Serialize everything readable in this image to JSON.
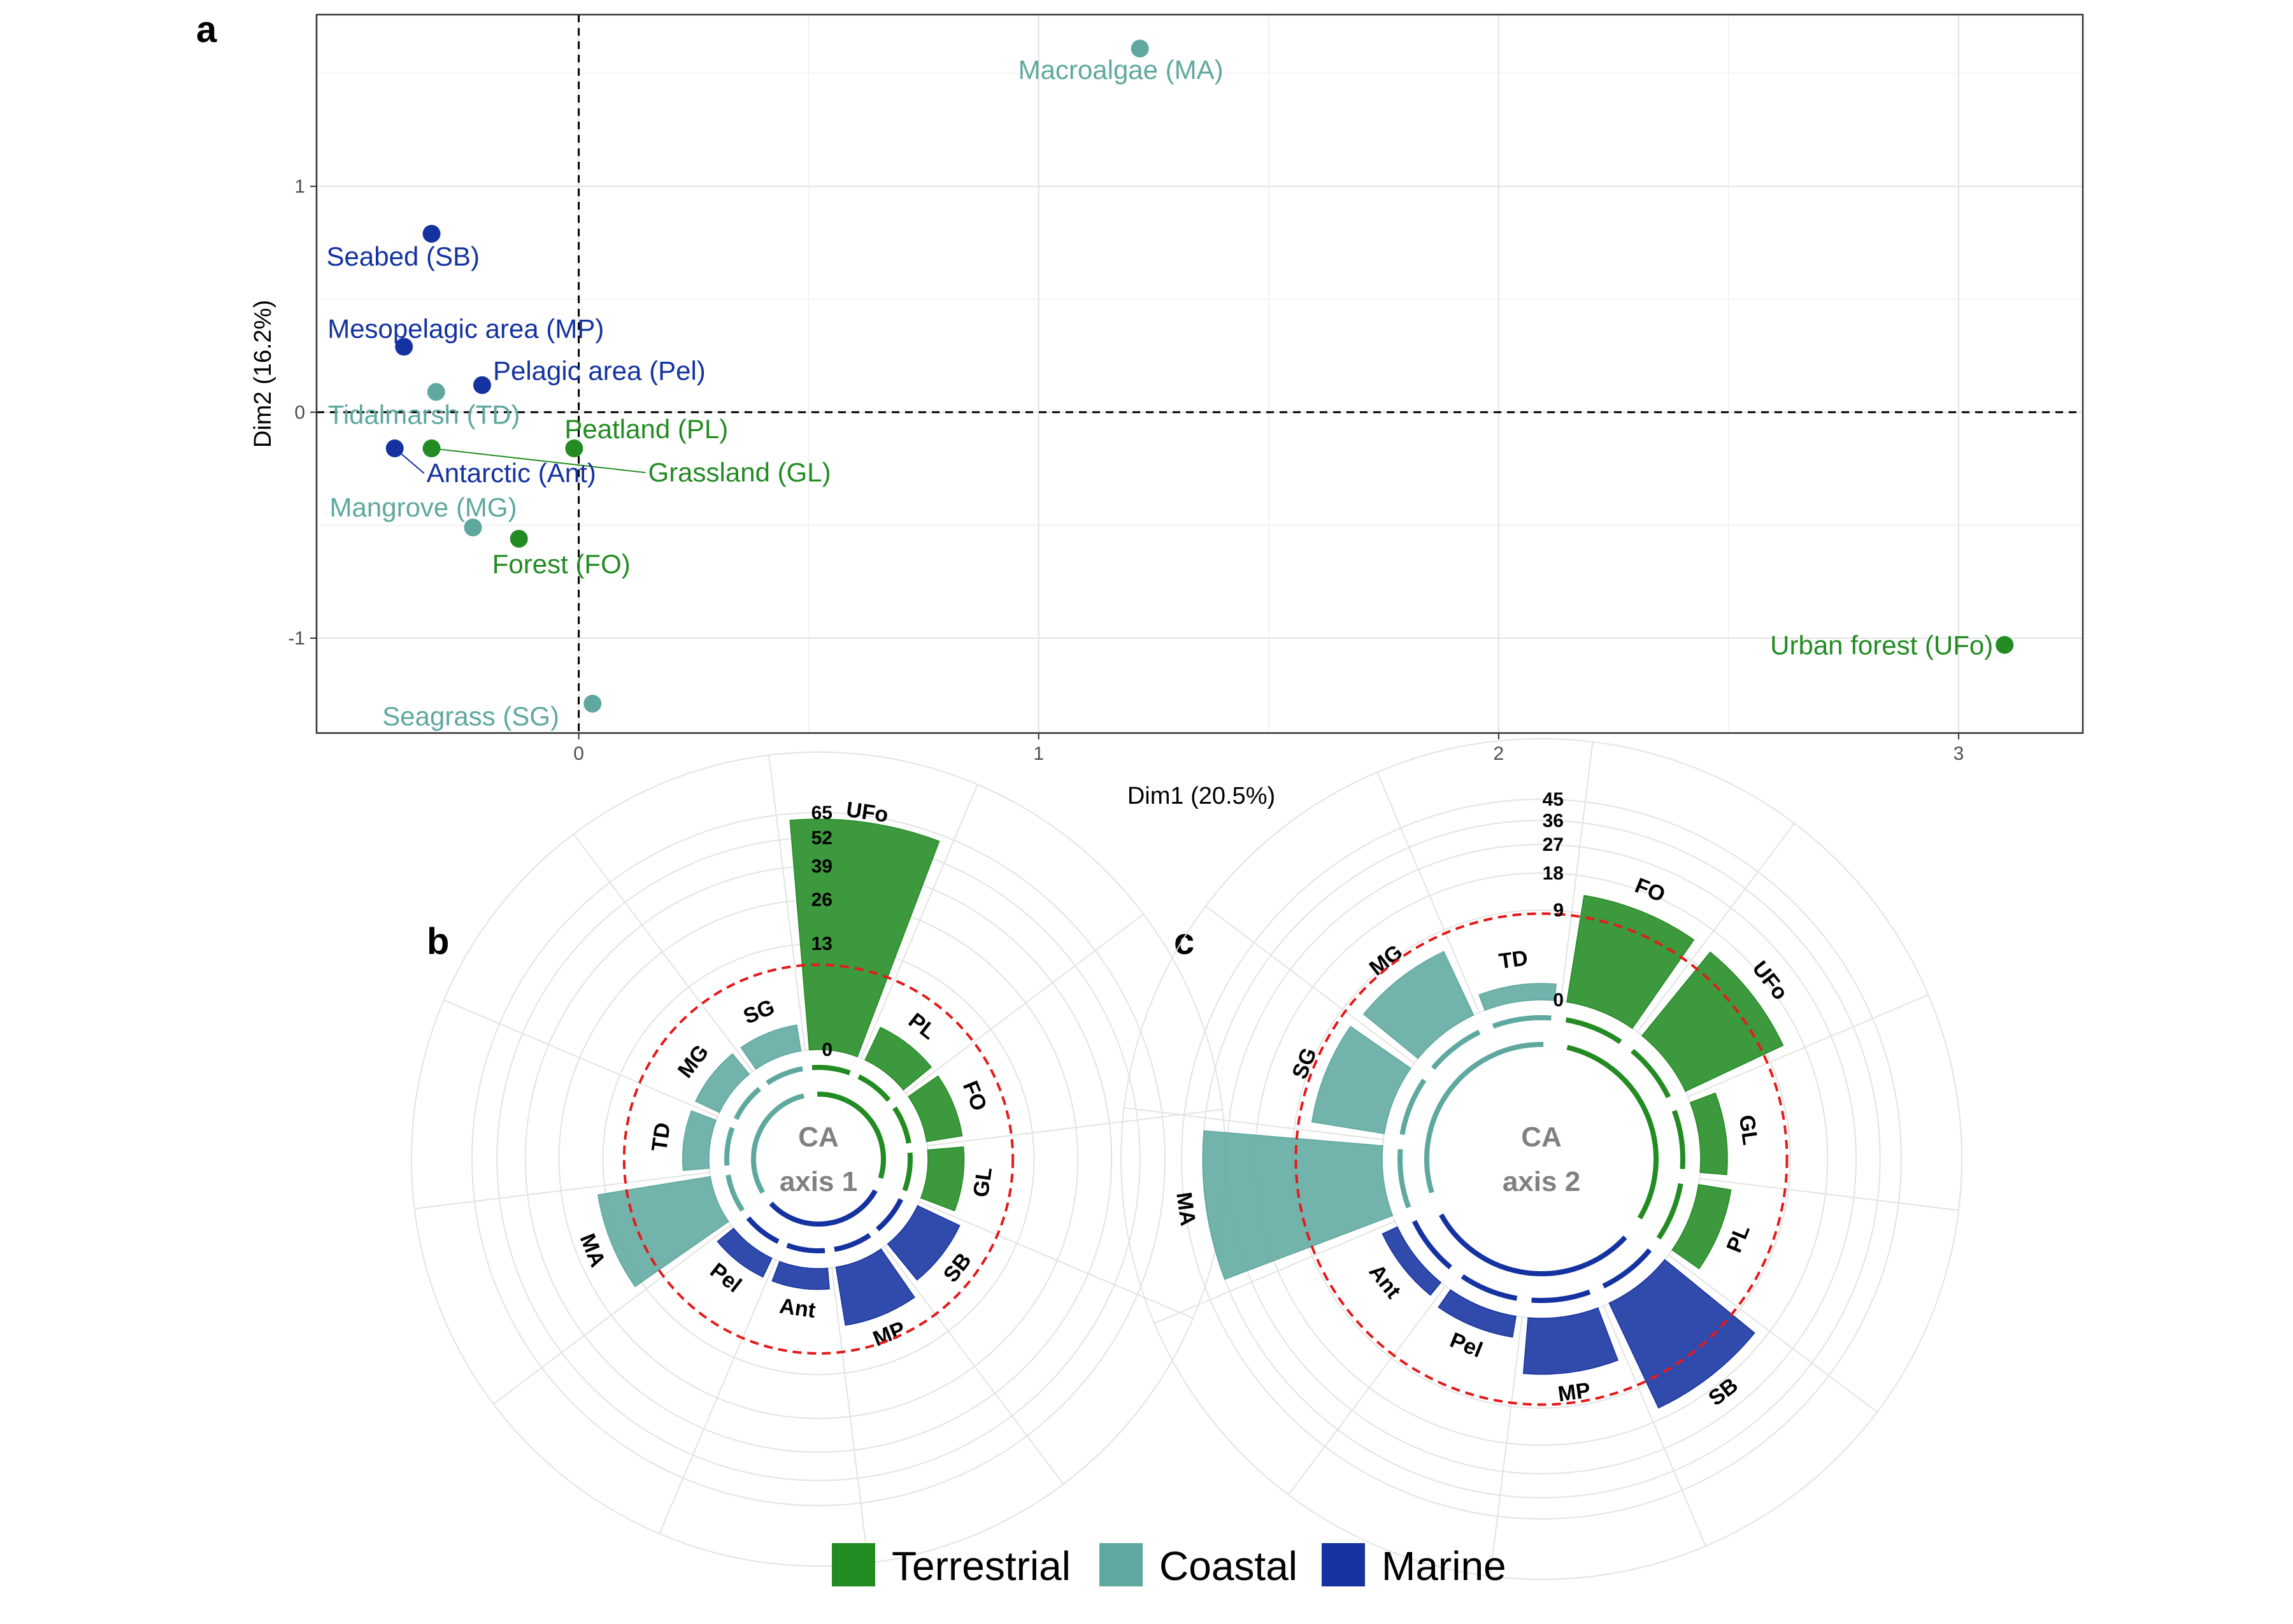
{
  "colors": {
    "terrestrial": "#228b22",
    "coastal": "#5fa8a0",
    "marine": "#1432a0",
    "reference_circle": "#e41a1c"
  },
  "panels": {
    "a": "a",
    "b": "b",
    "c": "c"
  },
  "chart_data": [
    {
      "type": "scatter",
      "panel": "a",
      "xlabel": "Dim1 (20.5%)",
      "ylabel": "Dim2 (16.2%)",
      "xlim": [
        -0.57,
        3.27
      ],
      "ylim": [
        -1.42,
        1.76
      ],
      "xticks": [
        0,
        1,
        2,
        3
      ],
      "yticks": [
        -1,
        0,
        1
      ],
      "xtick_labels": [
        "0",
        "1",
        "2",
        "3"
      ],
      "ytick_labels": [
        "-1",
        "0",
        "1"
      ],
      "grid": true,
      "reference_lines": {
        "x": 0,
        "y": 0,
        "style": "dashed"
      },
      "points": [
        {
          "label": "Macroalgae (MA)",
          "x": 1.22,
          "y": 1.61,
          "group": "coastal"
        },
        {
          "label": "Seabed (SB)",
          "x": -0.32,
          "y": 0.79,
          "group": "marine"
        },
        {
          "label": "Mesopelagic area (MP)",
          "x": -0.38,
          "y": 0.29,
          "group": "marine"
        },
        {
          "label": "Pelagic area (Pel)",
          "x": -0.21,
          "y": 0.12,
          "group": "marine"
        },
        {
          "label": "Tidalmarsh (TD)",
          "x": -0.31,
          "y": 0.09,
          "group": "coastal"
        },
        {
          "label": "Peatland (PL)",
          "x": -0.01,
          "y": -0.16,
          "group": "terrestrial"
        },
        {
          "label": "Grassland (GL)",
          "x": -0.32,
          "y": -0.16,
          "group": "terrestrial"
        },
        {
          "label": "Antarctic (Ant)",
          "x": -0.4,
          "y": -0.16,
          "group": "marine"
        },
        {
          "label": "Mangrove (MG)",
          "x": -0.23,
          "y": -0.51,
          "group": "coastal"
        },
        {
          "label": "Forest (FO)",
          "x": -0.13,
          "y": -0.56,
          "group": "terrestrial"
        },
        {
          "label": "Urban forest (UFo)",
          "x": 3.1,
          "y": -1.03,
          "group": "terrestrial"
        },
        {
          "label": "Seagrass (SG)",
          "x": 0.03,
          "y": -1.29,
          "group": "coastal"
        }
      ]
    },
    {
      "type": "bar",
      "subtype": "circular",
      "panel": "b",
      "center_title": [
        "CA",
        "axis 1"
      ],
      "rlim": [
        0,
        65
      ],
      "rticks": [
        0,
        13,
        26,
        39,
        52,
        65
      ],
      "rtick_labels": [
        "0",
        "13",
        "26",
        "39",
        "52",
        "65"
      ],
      "reference_value": 8.33,
      "categories": [
        "UFo",
        "PL",
        "FO",
        "GL",
        "SB",
        "MP",
        "Ant",
        "Pel",
        "MA",
        "TD",
        "MG",
        "SG"
      ],
      "values": [
        61.5,
        1.5,
        1.5,
        1.5,
        2.5,
        4.0,
        0.5,
        0.5,
        15.0,
        0.8,
        0.8,
        0.8
      ],
      "groups": [
        "terrestrial",
        "terrestrial",
        "terrestrial",
        "terrestrial",
        "marine",
        "marine",
        "marine",
        "marine",
        "coastal",
        "coastal",
        "coastal",
        "coastal"
      ]
    },
    {
      "type": "bar",
      "subtype": "circular",
      "panel": "c",
      "center_title": [
        "CA",
        "axis 2"
      ],
      "rlim": [
        0,
        45
      ],
      "rticks": [
        0,
        9,
        18,
        27,
        36,
        45
      ],
      "rtick_labels": [
        "0",
        "9",
        "18",
        "27",
        "36",
        "45"
      ],
      "reference_value": 8.33,
      "categories": [
        "FO",
        "UFo",
        "GL",
        "PL",
        "SB",
        "MP",
        "Pel",
        "Ant",
        "MA",
        "SG",
        "MG",
        "TD"
      ],
      "values": [
        13.0,
        13.0,
        0.8,
        1.2,
        15.0,
        3.5,
        0.5,
        0.3,
        36.0,
        6.0,
        5.5,
        0.3
      ],
      "groups": [
        "terrestrial",
        "terrestrial",
        "terrestrial",
        "terrestrial",
        "marine",
        "marine",
        "marine",
        "marine",
        "coastal",
        "coastal",
        "coastal",
        "coastal"
      ]
    }
  ],
  "legend": {
    "placement": "bottom",
    "items": [
      {
        "label": "Terrestrial",
        "group": "terrestrial"
      },
      {
        "label": "Coastal",
        "group": "coastal"
      },
      {
        "label": "Marine",
        "group": "marine"
      }
    ]
  }
}
